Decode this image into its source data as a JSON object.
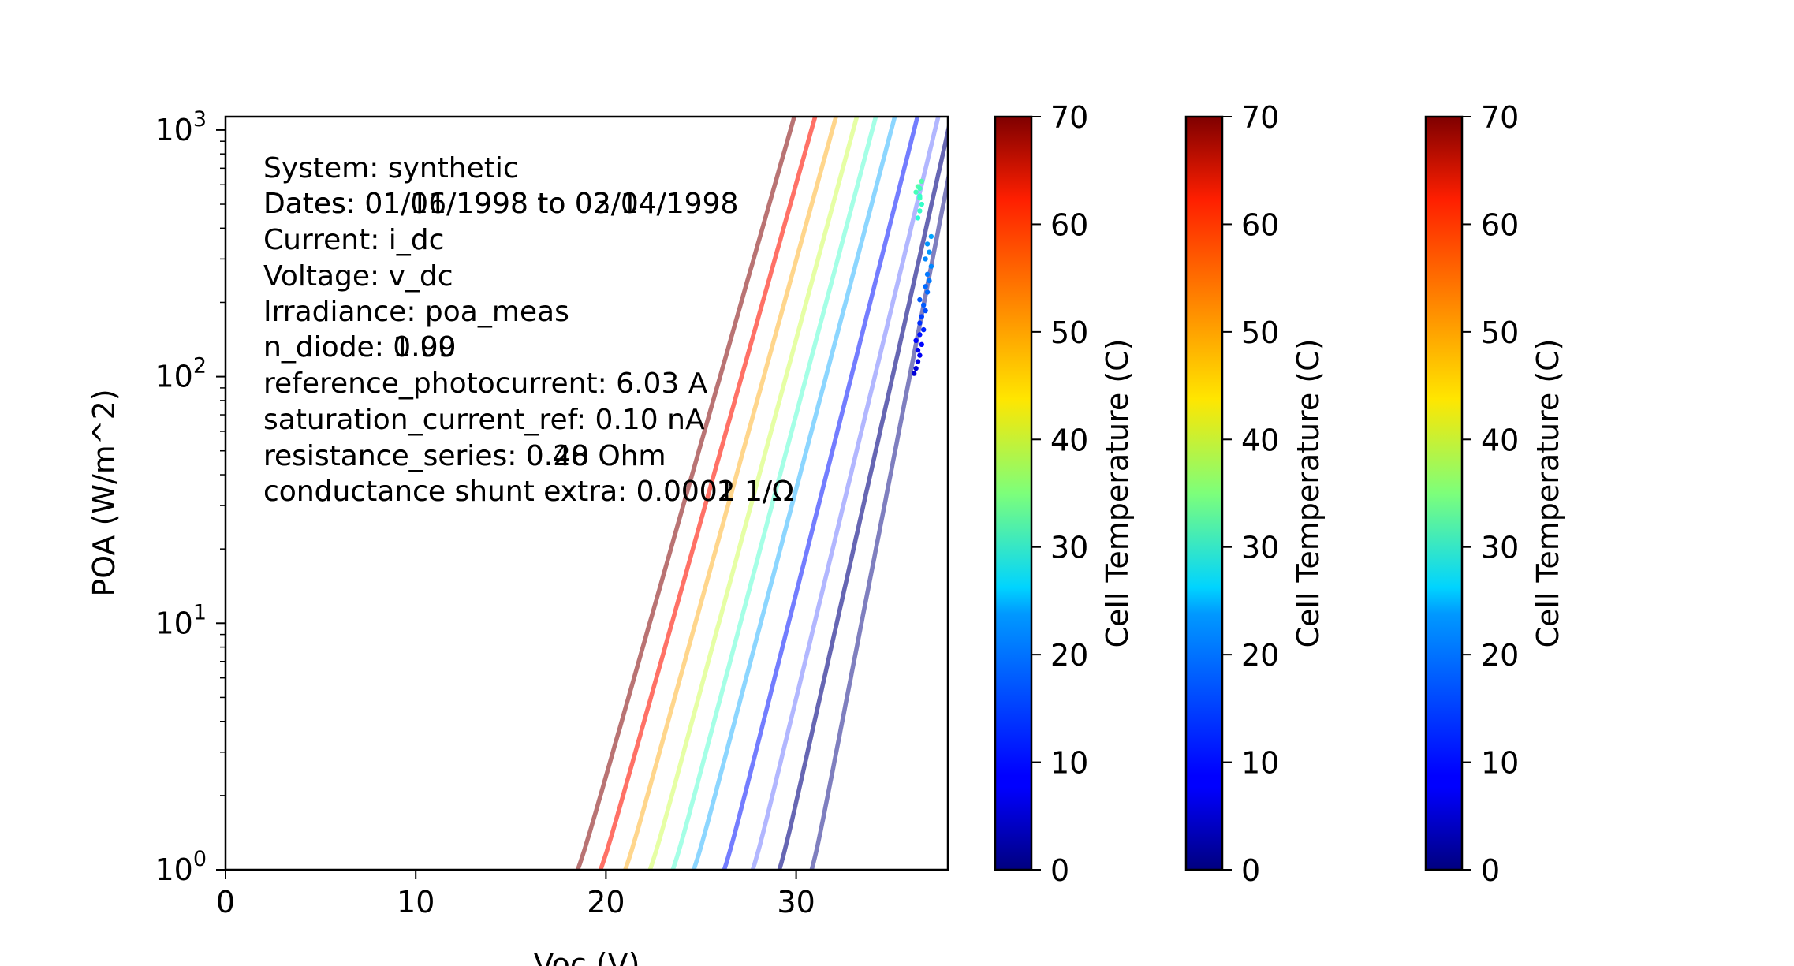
{
  "chart_data": {
    "type": "line",
    "title": "",
    "xlabel": "Voc (V)",
    "ylabel": "POA (W/m^2)",
    "xlim": [
      0,
      38.5
    ],
    "ylim": [
      1,
      1200
    ],
    "yscale": "log",
    "x_ticks": [
      0,
      10,
      20,
      30
    ],
    "y_ticks": [
      {
        "value": 1,
        "base": "10",
        "exp": "0"
      },
      {
        "value": 10,
        "base": "10",
        "exp": "1"
      },
      {
        "value": 100,
        "base": "10",
        "exp": "2"
      },
      {
        "value": 1000,
        "base": "10",
        "exp": "3"
      }
    ],
    "grid": false,
    "annotations": [
      "System: synthetic",
      "Dates: 01/01/1998 to 03/14/1998",
      "Dates: 01/16/1998 to 02/04/1998",
      "Current: i_dc",
      "Voltage: v_dc",
      "Irradiance: poa_meas",
      "n_diode: 1.00",
      "n_diode: 0.99",
      "reference_photocurrent: 6.03 A",
      "saturation_current_ref: 0.10 nA",
      "resistance_series: 0.20 Ohm",
      "resistance_series: 0.48 Ohm",
      "conductance shunt extra: 0.0001 1/Ω",
      "conductance shunt extra: 0.0002 1/Ω"
    ],
    "model_curves": [
      {
        "temperature": 0,
        "voc_at_1": 30.9,
        "voc_at_1000": 38.5,
        "opacity": 0.5
      },
      {
        "temperature": 0,
        "voc_at_1": 29.2,
        "voc_at_1000": 38.0,
        "opacity": 0.6
      },
      {
        "temperature": 10,
        "voc_at_1": 27.8,
        "voc_at_1000": 37.3,
        "opacity": 0.3
      },
      {
        "temperature": 10,
        "voc_at_1": 26.3,
        "voc_at_1000": 36.2,
        "opacity": 0.55
      },
      {
        "temperature": 20,
        "voc_at_1": 24.7,
        "voc_at_1000": 35.0,
        "opacity": 0.45
      },
      {
        "temperature": 30,
        "voc_at_1": 23.6,
        "voc_at_1000": 34.0,
        "opacity": 0.45
      },
      {
        "temperature": 40,
        "voc_at_1": 22.4,
        "voc_at_1000": 33.0,
        "opacity": 0.45
      },
      {
        "temperature": 50,
        "voc_at_1": 21.1,
        "voc_at_1000": 31.9,
        "opacity": 0.45
      },
      {
        "temperature": 60,
        "voc_at_1": 19.8,
        "voc_at_1000": 30.8,
        "opacity": 0.6
      },
      {
        "temperature": 70,
        "voc_at_1": 18.6,
        "voc_at_1000": 29.7,
        "opacity": 0.55
      }
    ],
    "scatter": {
      "x": [
        36.2,
        36.3,
        36.4,
        36.5,
        36.4,
        36.6,
        36.3,
        36.5,
        36.7,
        36.5,
        36.6,
        36.8,
        36.7,
        36.5,
        36.9,
        36.8,
        37.0,
        36.9,
        37.1,
        36.8,
        37.0,
        36.9,
        37.1,
        36.4,
        36.5,
        36.6,
        36.5,
        36.3,
        36.4,
        36.6,
        36.5,
        36.5
      ],
      "y": [
        103,
        108,
        115,
        122,
        128,
        135,
        140,
        148,
        155,
        165,
        175,
        185,
        195,
        205,
        220,
        232,
        245,
        260,
        280,
        300,
        320,
        345,
        370,
        440,
        470,
        500,
        530,
        560,
        590,
        620,
        540,
        580
      ],
      "temperature": [
        6,
        6,
        7,
        8,
        8,
        9,
        9,
        10,
        11,
        12,
        13,
        14,
        15,
        15,
        16,
        16,
        17,
        17,
        18,
        18,
        19,
        19,
        20,
        29,
        30,
        30,
        31,
        31,
        32,
        32,
        30,
        31
      ]
    },
    "colorbars": [
      {
        "label": "Cell Temperature (C)",
        "min": 0,
        "max": 70,
        "ticks": [
          0,
          10,
          20,
          30,
          40,
          50,
          60,
          70
        ],
        "colormap": "jet"
      },
      {
        "label": "Cell Temperature (C)",
        "min": 0,
        "max": 70,
        "ticks": [
          0,
          10,
          20,
          30,
          40,
          50,
          60,
          70
        ],
        "colormap": "jet"
      },
      {
        "label": "Cell Temperature (C)",
        "min": 0,
        "max": 70,
        "ticks": [
          0,
          10,
          20,
          30,
          40,
          50,
          60,
          70
        ],
        "colormap": "jet"
      }
    ]
  }
}
